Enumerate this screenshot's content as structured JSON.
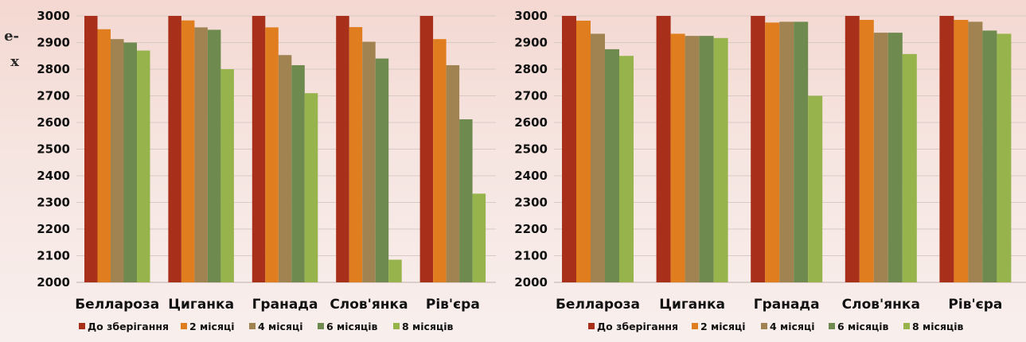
{
  "side_text": [
    "е-",
    "х"
  ],
  "colors": [
    "#a8301a",
    "#e07e1f",
    "#a08350",
    "#6e8a4e",
    "#97b34c"
  ],
  "chart_data": [
    {
      "type": "bar",
      "title": "",
      "xlabel": "",
      "ylabel": "",
      "ylim": [
        2000,
        3000
      ],
      "yticks": [
        2000,
        2100,
        2200,
        2300,
        2400,
        2500,
        2600,
        2700,
        2800,
        2900,
        3000
      ],
      "grid": true,
      "legend": "bottom",
      "categories": [
        "Белларoза",
        "Циганка",
        "Гранада",
        "Слов'янка",
        "Рів'єра"
      ],
      "series": [
        {
          "name": "До зберігання",
          "values": [
            3000,
            3000,
            3000,
            3000,
            3000
          ]
        },
        {
          "name": "2 місяці",
          "values": [
            2950,
            2983,
            2957,
            2958,
            2913
          ]
        },
        {
          "name": "4 місяці",
          "values": [
            2913,
            2957,
            2853,
            2903,
            2815
          ]
        },
        {
          "name": "6 місяців",
          "values": [
            2900,
            2948,
            2815,
            2840,
            2612
          ]
        },
        {
          "name": "8 місяців",
          "values": [
            2870,
            2800,
            2710,
            2085,
            2333
          ]
        }
      ]
    },
    {
      "type": "bar",
      "title": "",
      "xlabel": "",
      "ylabel": "",
      "ylim": [
        2000,
        3000
      ],
      "yticks": [
        2000,
        2100,
        2200,
        2300,
        2400,
        2500,
        2600,
        2700,
        2800,
        2900,
        3000
      ],
      "grid": true,
      "legend": "bottom",
      "categories": [
        "Белларoза",
        "Циганка",
        "Гранада",
        "Слов'янка",
        "Рів'єра"
      ],
      "series": [
        {
          "name": "До зберігання",
          "values": [
            3000,
            3000,
            3000,
            3000,
            3000
          ]
        },
        {
          "name": "2 місяці",
          "values": [
            2982,
            2933,
            2975,
            2985,
            2985
          ]
        },
        {
          "name": "4 місяці",
          "values": [
            2933,
            2925,
            2978,
            2937,
            2978
          ]
        },
        {
          "name": "6 місяців",
          "values": [
            2875,
            2925,
            2978,
            2937,
            2945
          ]
        },
        {
          "name": "8 місяців",
          "values": [
            2850,
            2917,
            2700,
            2857,
            2933
          ]
        }
      ]
    }
  ]
}
